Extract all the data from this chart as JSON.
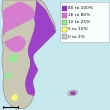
{
  "legend_entries": [
    {
      "label": "80 to 100%",
      "color": "#9932CC"
    },
    {
      "label": "26 to 80%",
      "color": "#DA70D6"
    },
    {
      "label": "10 to 25%",
      "color": "#90EE90"
    },
    {
      "label": "5 to 10%",
      "color": "#FFFF66"
    },
    {
      "label": "0 to 2%",
      "color": "#C8C8C8"
    }
  ],
  "background_color": "#C8E8F0",
  "land_color": "#C8C8B4",
  "legend_bg": "#FFFFFF",
  "outline_color": "#888877",
  "text_color": "#111111",
  "legend_fontsize": 3.2,
  "figsize": [
    1.1,
    1.1
  ],
  "dpi": 100
}
